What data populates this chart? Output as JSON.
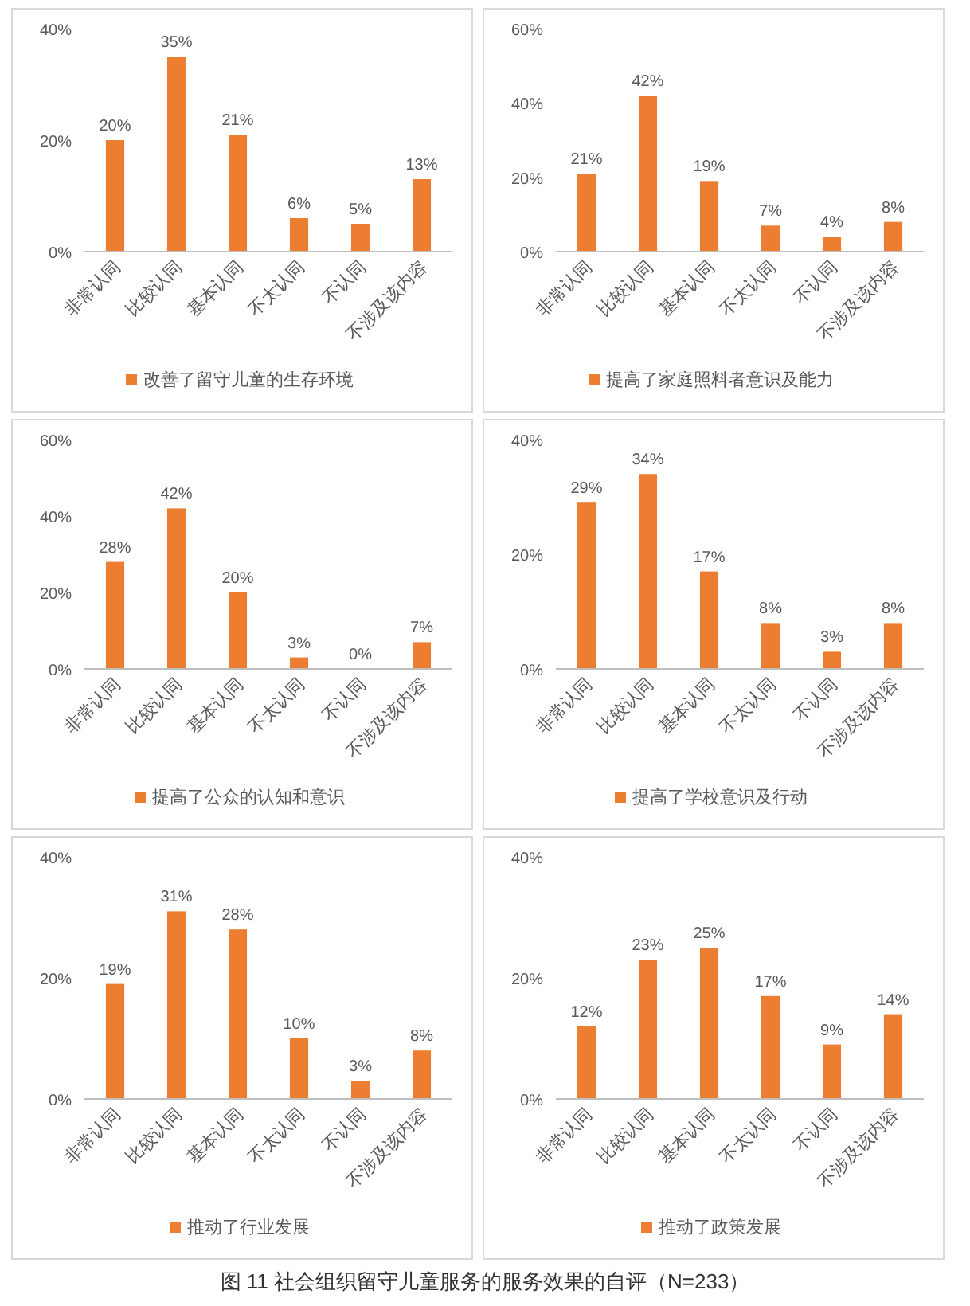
{
  "chart_data": [
    {
      "type": "bar",
      "categories": [
        "非常认同",
        "比较认同",
        "基本认同",
        "不太认同",
        "不认同",
        "不涉及该内容"
      ],
      "ylim": [
        0,
        40
      ],
      "yticks": [
        {
          "value": 0,
          "label": "0%"
        },
        {
          "value": 20,
          "label": "20%"
        },
        {
          "value": 40,
          "label": "40%"
        }
      ],
      "legend": "bottom",
      "series": [
        {
          "name": "改善了留守儿童的生存环境",
          "color": "#ed7d31",
          "values": [
            20,
            35,
            21,
            6,
            5,
            13
          ],
          "value_labels": [
            "20%",
            "35%",
            "21%",
            "6%",
            "5%",
            "13%"
          ]
        }
      ]
    },
    {
      "type": "bar",
      "categories": [
        "非常认同",
        "比较认同",
        "基本认同",
        "不太认同",
        "不认同",
        "不涉及该内容"
      ],
      "ylim": [
        0,
        60
      ],
      "yticks": [
        {
          "value": 0,
          "label": "0%"
        },
        {
          "value": 20,
          "label": "20%"
        },
        {
          "value": 40,
          "label": "40%"
        },
        {
          "value": 60,
          "label": "60%"
        }
      ],
      "legend": "bottom",
      "series": [
        {
          "name": "提高了家庭照料者意识及能力",
          "color": "#ed7d31",
          "values": [
            21,
            42,
            19,
            7,
            4,
            8
          ],
          "value_labels": [
            "21%",
            "42%",
            "19%",
            "7%",
            "4%",
            "8%"
          ]
        }
      ]
    },
    {
      "type": "bar",
      "categories": [
        "非常认同",
        "比较认同",
        "基本认同",
        "不太认同",
        "不认同",
        "不涉及该内容"
      ],
      "ylim": [
        0,
        60
      ],
      "yticks": [
        {
          "value": 0,
          "label": "0%"
        },
        {
          "value": 20,
          "label": "20%"
        },
        {
          "value": 40,
          "label": "40%"
        },
        {
          "value": 60,
          "label": "60%"
        }
      ],
      "legend": "bottom",
      "series": [
        {
          "name": "提高了公众的认知和意识",
          "color": "#ed7d31",
          "values": [
            28,
            42,
            20,
            3,
            0,
            7
          ],
          "value_labels": [
            "28%",
            "42%",
            "20%",
            "3%",
            "0%",
            "7%"
          ]
        }
      ]
    },
    {
      "type": "bar",
      "categories": [
        "非常认同",
        "比较认同",
        "基本认同",
        "不太认同",
        "不认同",
        "不涉及该内容"
      ],
      "ylim": [
        0,
        40
      ],
      "yticks": [
        {
          "value": 0,
          "label": "0%"
        },
        {
          "value": 20,
          "label": "20%"
        },
        {
          "value": 40,
          "label": "40%"
        }
      ],
      "legend": "bottom",
      "series": [
        {
          "name": "提高了学校意识及行动",
          "color": "#ed7d31",
          "values": [
            29,
            34,
            17,
            8,
            3,
            8
          ],
          "value_labels": [
            "29%",
            "34%",
            "17%",
            "8%",
            "3%",
            "8%"
          ]
        }
      ]
    },
    {
      "type": "bar",
      "categories": [
        "非常认同",
        "比较认同",
        "基本认同",
        "不太认同",
        "不认同",
        "不涉及该内容"
      ],
      "ylim": [
        0,
        40
      ],
      "yticks": [
        {
          "value": 0,
          "label": "0%"
        },
        {
          "value": 20,
          "label": "20%"
        },
        {
          "value": 40,
          "label": "40%"
        }
      ],
      "legend": "bottom",
      "series": [
        {
          "name": "推动了行业发展",
          "color": "#ed7d31",
          "values": [
            19,
            31,
            28,
            10,
            3,
            8
          ],
          "value_labels": [
            "19%",
            "31%",
            "28%",
            "10%",
            "3%",
            "8%"
          ]
        }
      ]
    },
    {
      "type": "bar",
      "categories": [
        "非常认同",
        "比较认同",
        "基本认同",
        "不太认同",
        "不认同",
        "不涉及该内容"
      ],
      "ylim": [
        0,
        40
      ],
      "yticks": [
        {
          "value": 0,
          "label": "0%"
        },
        {
          "value": 20,
          "label": "20%"
        },
        {
          "value": 40,
          "label": "40%"
        }
      ],
      "legend": "bottom",
      "series": [
        {
          "name": "推动了政策发展",
          "color": "#ed7d31",
          "values": [
            12,
            23,
            25,
            17,
            9,
            14
          ],
          "value_labels": [
            "12%",
            "23%",
            "25%",
            "17%",
            "9%",
            "14%"
          ]
        }
      ],
      "annotations": [
        "图 11 社会组织留守儿童服务的服务效果的自评（N=233）"
      ]
    }
  ]
}
